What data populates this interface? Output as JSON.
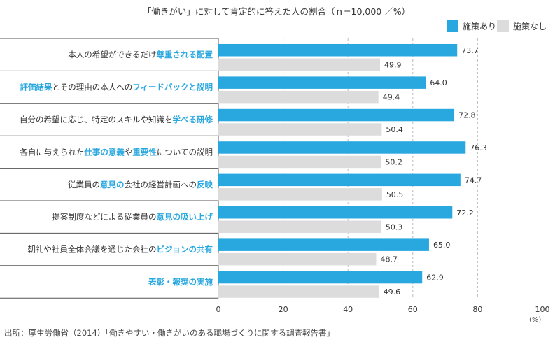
{
  "chart_data": {
    "type": "bar",
    "orientation": "horizontal",
    "title": "「働きがい」に対して肯定的に答えた人の割合（ｎ=10,000 ／%）",
    "categories": [
      [
        {
          "t": "本人の希望ができるだけ",
          "h": false
        },
        {
          "t": "尊重される配置",
          "h": true
        }
      ],
      [
        {
          "t": "評価結果",
          "h": true
        },
        {
          "t": "とその理由の本人への",
          "h": false
        },
        {
          "t": "フィードバックと説明",
          "h": true
        }
      ],
      [
        {
          "t": "自分の希望に応じ、特定のスキルや知識を",
          "h": false
        },
        {
          "t": "学べる研修",
          "h": true
        }
      ],
      [
        {
          "t": "各自に与えられた",
          "h": false
        },
        {
          "t": "仕事の意義",
          "h": true
        },
        {
          "t": "や",
          "h": false
        },
        {
          "t": "重要性",
          "h": true
        },
        {
          "t": "についての説明",
          "h": false
        }
      ],
      [
        {
          "t": "従業員の",
          "h": false
        },
        {
          "t": "意見の",
          "h": true
        },
        {
          "t": "会社の経営計画への",
          "h": false
        },
        {
          "t": "反映",
          "h": true
        }
      ],
      [
        {
          "t": "提案制度などによる従業員の",
          "h": false
        },
        {
          "t": "意見の吸い上げ",
          "h": true
        }
      ],
      [
        {
          "t": "朝礼や社員全体会議を通じた会社の",
          "h": false
        },
        {
          "t": "ビジョンの共有",
          "h": true
        }
      ],
      [
        {
          "t": "表彰・報奨の実施",
          "h": true
        }
      ]
    ],
    "series": [
      {
        "name": "施策あり",
        "color": "#29a8e0",
        "values": [
          73.7,
          64.0,
          72.8,
          76.3,
          74.7,
          72.2,
          65.0,
          62.9
        ]
      },
      {
        "name": "施策なし",
        "color": "#dcdcdc",
        "values": [
          49.9,
          49.4,
          50.4,
          50.2,
          50.5,
          50.3,
          48.7,
          49.6
        ]
      }
    ],
    "xlim": [
      0,
      100
    ],
    "xticks": [
      "0",
      "20",
      "40",
      "60",
      "80",
      "100"
    ],
    "unit": "(%)",
    "legend_position": "top-right",
    "grid": "vertical dashed at 20,40,60,80",
    "highlight_color": "#29a8e0"
  },
  "source": "出所：厚生労働省（2014）「働きやすい・働きがいのある職場づくりに関する調査報告書」"
}
